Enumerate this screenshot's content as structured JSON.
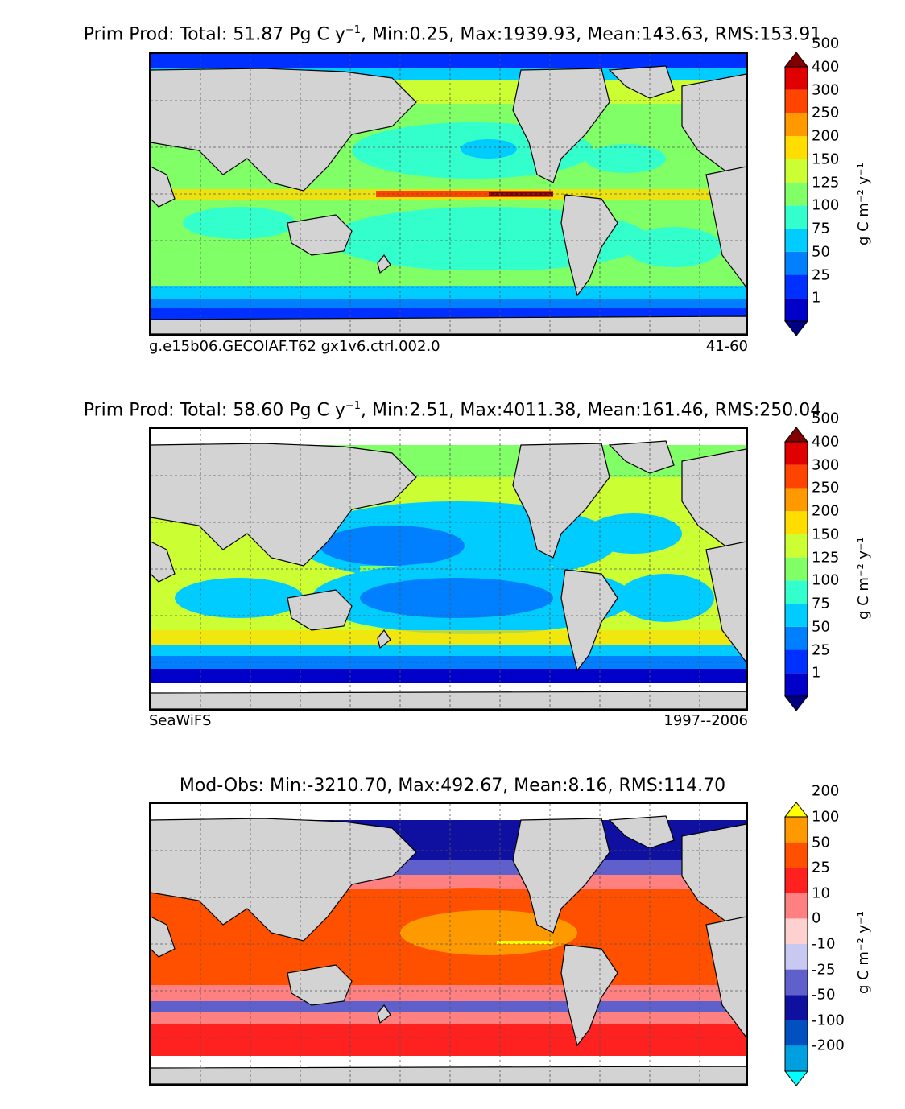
{
  "panels": [
    {
      "title_main": "Prim Prod: Total: 51.87 Pg C y",
      "title_sup": "−1",
      "title_rest": ", Min:0.25, Max:1939.93, Mean:143.63, RMS:153.91",
      "left_label": "g.e15b06.GECOIAF.T62 gx1v6.ctrl.002.0",
      "right_label": "41-60",
      "colorbar": {
        "ticks": [
          "1",
          "25",
          "50",
          "75",
          "100",
          "125",
          "150",
          "200",
          "250",
          "300",
          "400",
          "500"
        ],
        "colors": [
          "#000080",
          "#0000c8",
          "#0030ff",
          "#0080ff",
          "#00ccff",
          "#33ffcc",
          "#80ff66",
          "#ccff33",
          "#ffdd00",
          "#ff9900",
          "#ff4400",
          "#e00000",
          "#800000"
        ],
        "unit": "g C m⁻² y⁻¹"
      }
    },
    {
      "title_main": "Prim Prod: Total: 58.60 Pg C y",
      "title_sup": "−1",
      "title_rest": ", Min:2.51, Max:4011.38, Mean:161.46, RMS:250.04",
      "left_label": "SeaWiFS",
      "right_label": "1997--2006",
      "colorbar": {
        "ticks": [
          "1",
          "25",
          "50",
          "75",
          "100",
          "125",
          "150",
          "200",
          "250",
          "300",
          "400",
          "500"
        ],
        "colors": [
          "#000080",
          "#0000c8",
          "#0030ff",
          "#0080ff",
          "#00ccff",
          "#33ffcc",
          "#80ff66",
          "#ccff33",
          "#ffdd00",
          "#ff9900",
          "#ff4400",
          "#e00000",
          "#800000"
        ],
        "unit": "g C m⁻² y⁻¹"
      }
    },
    {
      "title_main": "Mod-Obs: Min:-3210.70, Max:492.67, Mean:8.16, RMS:114.70",
      "title_sup": "",
      "title_rest": "",
      "left_label": "",
      "right_label": "",
      "colorbar": {
        "ticks": [
          "-200",
          "-100",
          "-50",
          "-25",
          "-10",
          "0",
          "10",
          "25",
          "50",
          "100",
          "200"
        ],
        "colors": [
          "#00ffff",
          "#00a0e0",
          "#0050c0",
          "#1010a0",
          "#6060cc",
          "#c8c8f0",
          "#ffd0d0",
          "#ff8080",
          "#ff2020",
          "#ff5000",
          "#ff9900",
          "#ffff00"
        ],
        "unit": "g C m⁻² y⁻¹"
      }
    }
  ],
  "colors": {
    "land": "#d3d3d3",
    "missing": "#ffffff"
  }
}
